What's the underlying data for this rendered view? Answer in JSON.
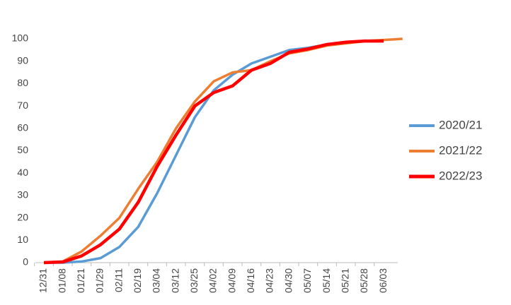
{
  "chart_data": {
    "type": "line",
    "categories": [
      "12/31",
      "01/08",
      "01/21",
      "01/29",
      "02/11",
      "02/19",
      "03/04",
      "03/12",
      "03/25",
      "04/02",
      "04/09",
      "04/16",
      "04/23",
      "04/30",
      "05/07",
      "05/14",
      "05/21",
      "05/28",
      "06/03",
      null
    ],
    "series": [
      {
        "name": "2020/21",
        "color": "#5b9bd5",
        "values": [
          0,
          0,
          0.5,
          2,
          7,
          16,
          31,
          48,
          65,
          77,
          84,
          89,
          92,
          95,
          96,
          97.5,
          98.5,
          99,
          99,
          null
        ]
      },
      {
        "name": "2021/22",
        "color": "#ed7d31",
        "values": [
          0,
          0.5,
          5,
          12,
          20,
          33,
          45,
          60,
          72,
          81,
          85,
          86,
          90,
          93.5,
          95,
          97,
          98,
          99,
          99.5,
          100
        ]
      },
      {
        "name": "2022/23",
        "color": "#ff0000",
        "values": [
          0,
          0.3,
          3,
          8,
          15,
          27,
          43,
          57,
          70,
          76,
          79,
          86,
          89,
          94,
          95.5,
          97.5,
          98.5,
          99,
          99,
          null
        ]
      }
    ],
    "ylim": [
      0,
      100
    ],
    "yticks": [
      0,
      10,
      20,
      30,
      40,
      50,
      60,
      70,
      80,
      90,
      100
    ],
    "grid": false,
    "legend": "right"
  }
}
